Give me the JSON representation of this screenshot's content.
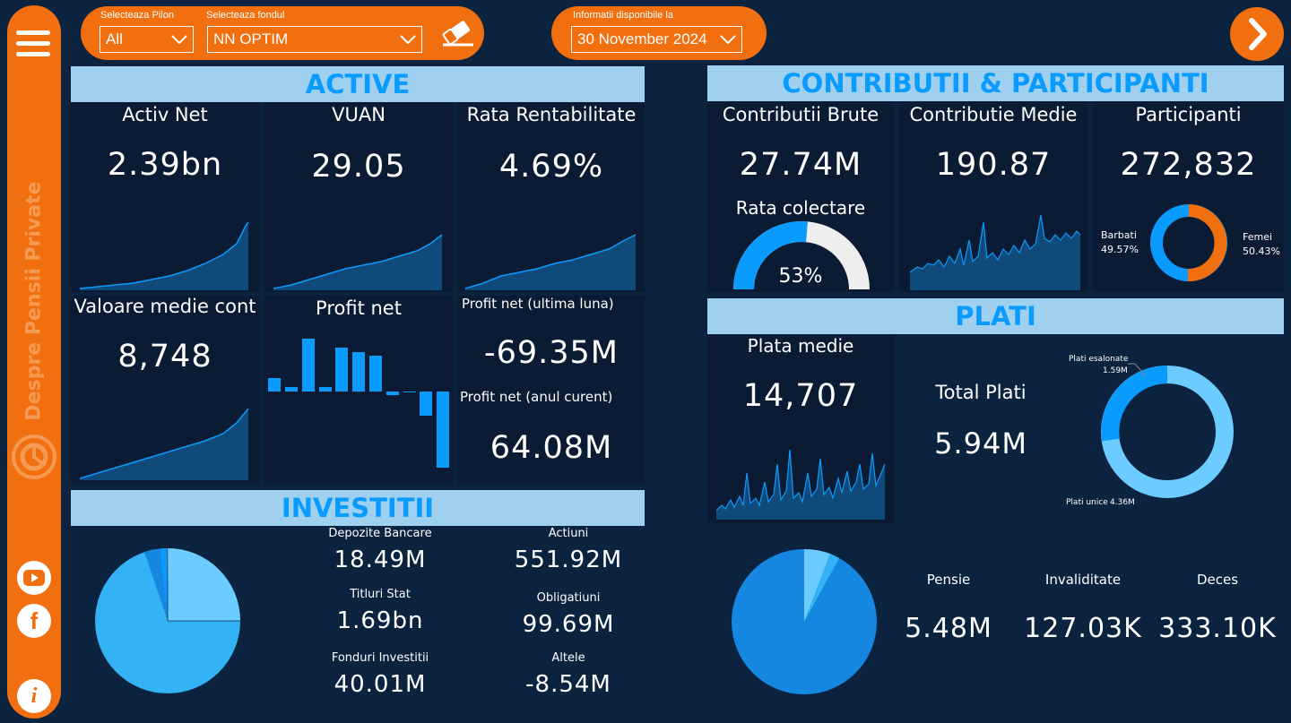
{
  "filters": {
    "pilon_label": "Selecteaza Pilon",
    "pilon_value": "All",
    "fond_label": "Selecteaza fondul",
    "fond_value": "NN OPTIM",
    "date_label": "Informatii disponibile la",
    "date_value": "30 November 2024"
  },
  "sidebar": {
    "title": "Despre Pensii Private",
    "icons": [
      "menu-icon",
      "logo-icon",
      "youtube-icon",
      "facebook-icon",
      "info-icon"
    ]
  },
  "active": {
    "header": "ACTIVE",
    "activ_net": {
      "label": "Activ Net",
      "value": "2.39bn"
    },
    "vuan": {
      "label": "VUAN",
      "value": "29.05"
    },
    "rata": {
      "label": "Rata Rentabilitate",
      "value": "4.69%"
    },
    "valoare_medie": {
      "label": "Valoare medie cont",
      "value": "8,748"
    },
    "profit_net": {
      "label": "Profit net"
    },
    "profit_luna": {
      "label": "Profit net (ultima luna)",
      "value": "-69.35M"
    },
    "profit_an": {
      "label": "Profit net (anul curent)",
      "value": "64.08M"
    }
  },
  "contributii": {
    "header": "CONTRIBUTII & PARTICIPANTI",
    "brute": {
      "label": "Contributii Brute",
      "value": "27.74M"
    },
    "medie": {
      "label": "Contributie Medie",
      "value": "190.87"
    },
    "participanti": {
      "label": "Participanti",
      "value": "272,832"
    },
    "rata_colectare": {
      "label": "Rata colectare",
      "value": "53%"
    },
    "barbati": {
      "label": "Barbati",
      "value": "49.57%"
    },
    "femei": {
      "label": "Femei",
      "value": "50.43%"
    }
  },
  "plati": {
    "header": "PLATI",
    "plata_medie": {
      "label": "Plata medie",
      "value": "14,707"
    },
    "total": {
      "label": "Total Plati",
      "value": "5.94M"
    },
    "esalonate": {
      "label": "Plati esalonate",
      "value": "1.59M"
    },
    "unice": {
      "label": "Plati unice",
      "value": "4.36M"
    },
    "pensie": {
      "label": "Pensie",
      "value": "5.48M"
    },
    "invaliditate": {
      "label": "Invaliditate",
      "value": "127.03K"
    },
    "deces": {
      "label": "Deces",
      "value": "333.10K"
    }
  },
  "investitii": {
    "header": "INVESTITII",
    "depozite": {
      "label": "Depozite Bancare",
      "value": "18.49M"
    },
    "actiuni": {
      "label": "Actiuni",
      "value": "551.92M"
    },
    "titluri": {
      "label": "Titluri Stat",
      "value": "1.69bn"
    },
    "obligatiuni": {
      "label": "Obligatiuni",
      "value": "99.69M"
    },
    "fonduri": {
      "label": "Fonduri Investitii",
      "value": "40.01M"
    },
    "altele": {
      "label": "Altele",
      "value": "-8.54M"
    }
  },
  "colors": {
    "orange": "#f26f0f",
    "header_bg": "#9fd0f0",
    "header_text": "#0a9bff",
    "blue": "#0a9bff",
    "light_blue": "#6ccbff",
    "background": "#0c2340"
  }
}
